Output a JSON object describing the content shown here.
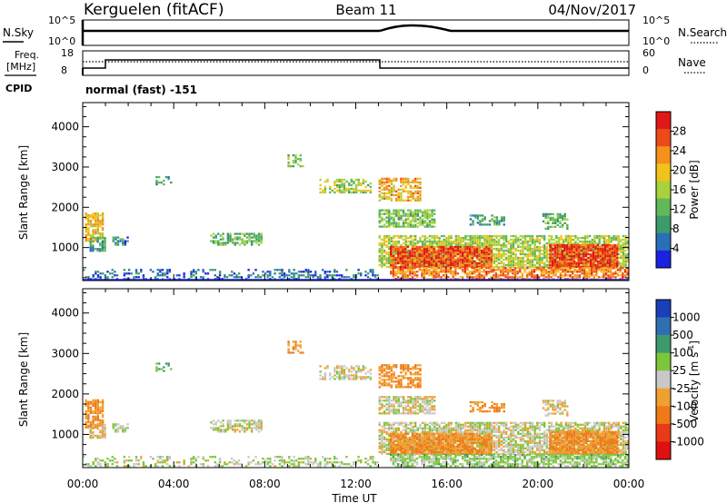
{
  "header": {
    "station": "Kerguelen (fitACF)",
    "beam": "Beam 11",
    "date": "04/Nov/2017"
  },
  "noise_panel": {
    "left_label": "N.Sky",
    "right_label": "N.Search",
    "left_ticks": [
      "10^5",
      "10^0"
    ],
    "right_ticks": [
      "10^5",
      "10^0"
    ]
  },
  "freq_panel": {
    "left_label_1": "Freq.",
    "left_label_2": "[MHz]",
    "right_label": "Nave",
    "left_ticks": [
      "18",
      "8"
    ],
    "right_ticks": [
      "60",
      "0"
    ],
    "cpid_label": "CPID",
    "cpid_text": "normal (fast) -151"
  },
  "x_ticks": [
    "00:00",
    "04:00",
    "08:00",
    "12:00",
    "16:00",
    "20:00",
    "00:00"
  ],
  "x_label": "Time UT",
  "range_ticks": [
    "1000",
    "2000",
    "3000",
    "4000"
  ],
  "range_label": "Slant Range [km]",
  "power_colorbar": {
    "label": "Power [dB]",
    "ticks": [
      "4",
      "8",
      "12",
      "16",
      "20",
      "24",
      "28"
    ],
    "colors": [
      "#1a22e0",
      "#2a6db8",
      "#3d9a6b",
      "#60b858",
      "#a8d23c",
      "#f2c21a",
      "#f5901a",
      "#ee4a18",
      "#e01818"
    ]
  },
  "velocity_colorbar": {
    "label": "Velocity [m s^-1]",
    "label_main": "Velocity [m s",
    "label_sup": "-1",
    "label_end": "]",
    "ticks": [
      "1000",
      "500",
      "100",
      "25",
      "-25",
      "-100",
      "-500",
      "-1000"
    ],
    "colors": [
      "#1a3fb8",
      "#2f6fb0",
      "#3d9a6b",
      "#7cc63a",
      "#c8c8c8",
      "#f0a030",
      "#f07a18",
      "#e83a18",
      "#e01010"
    ]
  },
  "chart_data": {
    "type": "heatmap",
    "x_range_hours": [
      0,
      24
    ],
    "y_range_km": [
      180,
      4600
    ],
    "panels": [
      "Power [dB]",
      "Velocity [m s^-1]"
    ],
    "scatter_regions": [
      {
        "t0": 0.1,
        "t1": 0.9,
        "r0": 1150,
        "r1": 1850,
        "power": 20,
        "velocity": -100,
        "density": 0.8
      },
      {
        "t0": 0.3,
        "t1": 1.0,
        "r0": 900,
        "r1": 1250,
        "power": 9,
        "velocity": -25,
        "density": 0.7
      },
      {
        "t0": 0.0,
        "t1": 13.0,
        "r0": 200,
        "r1": 450,
        "power": 6,
        "velocity": 20,
        "density": 0.35
      },
      {
        "t0": 1.3,
        "t1": 2.0,
        "r0": 1050,
        "r1": 1250,
        "power": 8,
        "velocity": 0,
        "density": 0.6
      },
      {
        "t0": 3.1,
        "t1": 3.9,
        "r0": 2550,
        "r1": 2750,
        "power": 9,
        "velocity": 100,
        "density": 0.4
      },
      {
        "t0": 5.6,
        "t1": 7.9,
        "r0": 1050,
        "r1": 1350,
        "power": 12,
        "velocity": 0,
        "density": 0.6
      },
      {
        "t0": 9.0,
        "t1": 9.7,
        "r0": 3000,
        "r1": 3300,
        "power": 14,
        "velocity": -100,
        "density": 0.5
      },
      {
        "t0": 10.4,
        "t1": 12.7,
        "r0": 2350,
        "r1": 2700,
        "power": 15,
        "velocity": 0,
        "density": 0.6
      },
      {
        "t0": 13.0,
        "t1": 14.8,
        "r0": 2150,
        "r1": 2700,
        "power": 21,
        "velocity": -100,
        "density": 0.6
      },
      {
        "t0": 13.0,
        "t1": 15.5,
        "r0": 1500,
        "r1": 1950,
        "power": 13,
        "velocity": 0,
        "density": 0.7
      },
      {
        "t0": 13.0,
        "t1": 24.0,
        "r0": 500,
        "r1": 1300,
        "power": 16,
        "velocity": 0,
        "density": 0.75
      },
      {
        "t0": 13.5,
        "t1": 18.0,
        "r0": 500,
        "r1": 1000,
        "power": 27,
        "velocity": -100,
        "density": 0.9
      },
      {
        "t0": 20.5,
        "t1": 23.5,
        "r0": 500,
        "r1": 1050,
        "power": 28,
        "velocity": -100,
        "density": 0.9
      },
      {
        "t0": 13.5,
        "t1": 24.0,
        "r0": 200,
        "r1": 500,
        "power": 24,
        "velocity": 50,
        "density": 0.7
      },
      {
        "t0": 17.0,
        "t1": 18.5,
        "r0": 1550,
        "r1": 1800,
        "power": 10,
        "velocity": -100,
        "density": 0.5
      },
      {
        "t0": 20.2,
        "t1": 21.3,
        "r0": 1450,
        "r1": 1850,
        "power": 12,
        "velocity": -25,
        "density": 0.6
      }
    ],
    "noise_sky": {
      "baseline": "flat",
      "bump_hours": [
        13.0,
        16.0
      ]
    },
    "frequency_MHz": [
      {
        "t": 0,
        "v": 10
      },
      {
        "t": 1,
        "v": 13.5
      },
      {
        "t": 13,
        "v": 10
      },
      {
        "t": 24,
        "v": 10
      }
    ],
    "nave": [
      {
        "t": 0,
        "v": 0
      },
      {
        "t": 1,
        "v": 24
      },
      {
        "t": 13,
        "v": 24
      },
      {
        "t": 24,
        "v": 24
      }
    ]
  }
}
